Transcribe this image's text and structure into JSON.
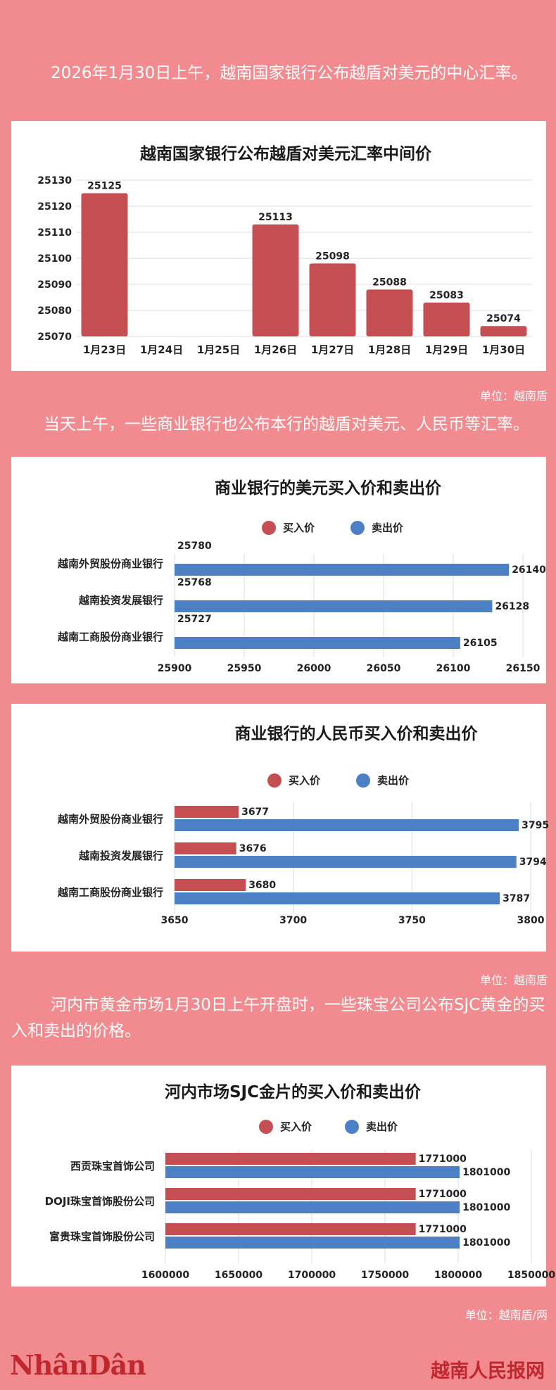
{
  "paragraphs": {
    "p1": "2026年1月30日上午，越南国家银行公布越盾对美元的中心汇率。",
    "p2": "当天上午，一些商业银行也公布本行的越盾对美元、人民币等汇率。",
    "p3": "河内市黄金市场1月30日上午开盘时，一些珠宝公司公布SJC黄金的买入和卖出的价格。"
  },
  "units": {
    "u1": "单位：越南盾",
    "u2": "单位：越南盾",
    "u3": "单位：越南盾/两"
  },
  "footer": {
    "logo": "NhânDân",
    "site": "越南人民报网"
  },
  "colors": {
    "buy": "#c44e52",
    "sell": "#4d7fc4",
    "accent": "#c0282d"
  },
  "chart_data": [
    {
      "id": "central",
      "type": "bar",
      "title": "越南国家银行公布越盾对美元汇率中间价",
      "categories": [
        "1月23日",
        "1月24日",
        "1月25日",
        "1月26日",
        "1月27日",
        "1月28日",
        "1月29日",
        "1月30日"
      ],
      "values": [
        25125,
        null,
        null,
        25113,
        25098,
        25088,
        25083,
        25074
      ],
      "value_labels": [
        "25125",
        "",
        "",
        "25113",
        "25098",
        "25088",
        "25083",
        "25074"
      ],
      "ylim": [
        25070,
        25130
      ],
      "yticks": [
        "25070",
        "25080",
        "25090",
        "25100",
        "25110",
        "25120",
        "25130"
      ],
      "grid": true
    },
    {
      "id": "usd",
      "type": "bar",
      "orientation": "horizontal",
      "title": "商业银行的美元买入价和卖出价",
      "legend": [
        "买入价",
        "卖出价"
      ],
      "legend_position": "top",
      "categories": [
        "越南外贸股份商业银行",
        "越南投资发展银行",
        "越南工商股份商业银行"
      ],
      "series": [
        {
          "name": "买入价",
          "values": [
            25780,
            25768,
            25727
          ],
          "labels": [
            "25780",
            "25768",
            "25727"
          ]
        },
        {
          "name": "卖出价",
          "values": [
            26140,
            26128,
            26105
          ],
          "labels": [
            "26140",
            "26128",
            "26105"
          ]
        }
      ],
      "xlim": [
        25900,
        26150
      ],
      "xticks": [
        "25900",
        "25950",
        "26000",
        "26050",
        "26100",
        "26150"
      ],
      "grid": true
    },
    {
      "id": "cny",
      "type": "bar",
      "orientation": "horizontal",
      "title": "商业银行的人民币买入价和卖出价",
      "legend": [
        "买入价",
        "卖出价"
      ],
      "legend_position": "top",
      "categories": [
        "越南外贸股份商业银行",
        "越南投资发展银行",
        "越南工商股份商业银行"
      ],
      "series": [
        {
          "name": "买入价",
          "values": [
            3677,
            3676,
            3680
          ],
          "labels": [
            "3677",
            "3676",
            "3680"
          ]
        },
        {
          "name": "卖出价",
          "values": [
            3795,
            3794,
            3787
          ],
          "labels": [
            "3795",
            "3794",
            "3787"
          ]
        }
      ],
      "xlim": [
        3650,
        3800
      ],
      "xticks": [
        "3650",
        "3700",
        "3750",
        "3800"
      ],
      "grid": true
    },
    {
      "id": "gold",
      "type": "bar",
      "orientation": "horizontal",
      "title": "河内市场SJC金片的买入价和卖出价",
      "legend": [
        "买入价",
        "卖出价"
      ],
      "legend_position": "top",
      "categories": [
        "西贡珠宝首饰公司",
        "DOJI珠宝首饰股份公司",
        "富贵珠宝首饰股份公司"
      ],
      "series": [
        {
          "name": "买入价",
          "values": [
            1771000,
            1771000,
            1771000
          ],
          "labels": [
            "1771000",
            "1771000",
            "1771000"
          ]
        },
        {
          "name": "卖出价",
          "values": [
            1801000,
            1801000,
            1801000
          ],
          "labels": [
            "1801000",
            "1801000",
            "1801000"
          ]
        }
      ],
      "xlim": [
        1600000,
        1850000
      ],
      "xticks": [
        "1600000",
        "1650000",
        "1700000",
        "1750000",
        "1800000",
        "1850000"
      ],
      "grid": true
    }
  ]
}
